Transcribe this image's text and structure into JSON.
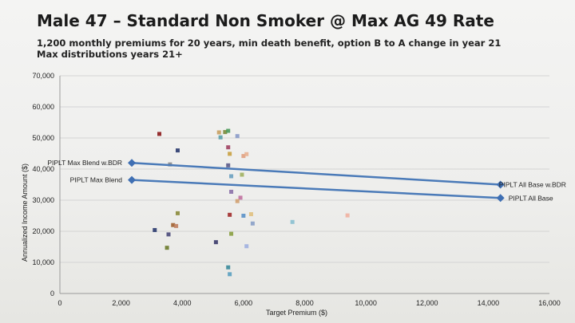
{
  "header": {
    "title": "Male 47 – Standard Non Smoker @ Max AG 49 Rate",
    "subtitle_line1": "1,200 monthly premiums for 20 years, min death benefit, option B to A change in year 21",
    "subtitle_line2": "Max distributions years 21+"
  },
  "chart_data": {
    "type": "scatter",
    "xlabel": "Target Premium ($)",
    "ylabel": "Annualized Income Amount ($)",
    "xlim": [
      0,
      16000
    ],
    "ylim": [
      0,
      70000
    ],
    "x_ticks": [
      {
        "value": 0,
        "label": "0"
      },
      {
        "value": 2000,
        "label": "2,000"
      },
      {
        "value": 4000,
        "label": "4,000"
      },
      {
        "value": 6000,
        "label": "6,000"
      },
      {
        "value": 8000,
        "label": "8,000"
      },
      {
        "value": 10000,
        "label": "10,000"
      },
      {
        "value": 12000,
        "label": "12,000"
      },
      {
        "value": 14000,
        "label": "14,000"
      },
      {
        "value": 16000,
        "label": "16,000"
      }
    ],
    "y_ticks": [
      {
        "value": 0,
        "label": "0"
      },
      {
        "value": 10000,
        "label": "10,000"
      },
      {
        "value": 20000,
        "label": "20,000"
      },
      {
        "value": 30000,
        "label": "30,000"
      },
      {
        "value": 40000,
        "label": "40,000"
      },
      {
        "value": 50000,
        "label": "50,000"
      },
      {
        "value": 60000,
        "label": "60,000"
      },
      {
        "value": 70000,
        "label": "70,000"
      }
    ],
    "gridlines": true,
    "colors": {
      "line": "#4a7ab8",
      "marker": "#3f6fb3",
      "grid": "#d4d4d4"
    },
    "series": [
      {
        "name": "PIPLT Max Blend w.BDR",
        "x": [
          2350,
          14400
        ],
        "y": [
          42000,
          35000
        ]
      },
      {
        "name": "PIPLT Max Blend",
        "x": [
          2350,
          14400
        ],
        "y": [
          36500,
          30700
        ]
      },
      {
        "name": "PIPLT All Base w.BDR",
        "x": [
          14400
        ],
        "y": [
          35000
        ]
      },
      {
        "name": "PIPLT All Base",
        "x": [
          14400
        ],
        "y": [
          30700
        ]
      }
    ],
    "scatter_points": [
      {
        "x": 3250,
        "y": 51300,
        "color": "#8b1a1a"
      },
      {
        "x": 3850,
        "y": 46000,
        "color": "#2a3a6e"
      },
      {
        "x": 3600,
        "y": 41500,
        "color": "#8a8a8a"
      },
      {
        "x": 5200,
        "y": 51800,
        "color": "#c8a060"
      },
      {
        "x": 5250,
        "y": 50200,
        "color": "#5aa0a8"
      },
      {
        "x": 5400,
        "y": 51900,
        "color": "#7a8a3a"
      },
      {
        "x": 5500,
        "y": 52300,
        "color": "#4a9a5a"
      },
      {
        "x": 5800,
        "y": 50600,
        "color": "#8a9ac8"
      },
      {
        "x": 5500,
        "y": 47000,
        "color": "#a04060"
      },
      {
        "x": 5550,
        "y": 44900,
        "color": "#c8a040"
      },
      {
        "x": 6000,
        "y": 44200,
        "color": "#e0a080"
      },
      {
        "x": 6100,
        "y": 44800,
        "color": "#e8b090"
      },
      {
        "x": 5500,
        "y": 41200,
        "color": "#5a5a8a"
      },
      {
        "x": 5600,
        "y": 37700,
        "color": "#6aa0c0"
      },
      {
        "x": 5950,
        "y": 38200,
        "color": "#a0b060"
      },
      {
        "x": 5600,
        "y": 32700,
        "color": "#8a70a8"
      },
      {
        "x": 5900,
        "y": 30800,
        "color": "#c070a0"
      },
      {
        "x": 5800,
        "y": 29700,
        "color": "#d0a070"
      },
      {
        "x": 5550,
        "y": 25300,
        "color": "#a02a2a"
      },
      {
        "x": 6000,
        "y": 25000,
        "color": "#5a90c8"
      },
      {
        "x": 6250,
        "y": 25500,
        "color": "#e0c080"
      },
      {
        "x": 6300,
        "y": 22500,
        "color": "#8aa0c8"
      },
      {
        "x": 7600,
        "y": 23000,
        "color": "#8ac0d0"
      },
      {
        "x": 9400,
        "y": 25100,
        "color": "#f0b0a0"
      },
      {
        "x": 3850,
        "y": 25800,
        "color": "#8a8a3a"
      },
      {
        "x": 3700,
        "y": 22000,
        "color": "#a06030"
      },
      {
        "x": 3800,
        "y": 21700,
        "color": "#c08060"
      },
      {
        "x": 3100,
        "y": 20400,
        "color": "#2a3a6e"
      },
      {
        "x": 3550,
        "y": 19000,
        "color": "#4a4a7a"
      },
      {
        "x": 3500,
        "y": 14700,
        "color": "#6a7a2a"
      },
      {
        "x": 5100,
        "y": 16500,
        "color": "#3a3a6a"
      },
      {
        "x": 5600,
        "y": 19200,
        "color": "#8aa040"
      },
      {
        "x": 6100,
        "y": 15200,
        "color": "#a0b0e0"
      },
      {
        "x": 5500,
        "y": 8400,
        "color": "#3a8a9a"
      },
      {
        "x": 5550,
        "y": 6200,
        "color": "#5aa0c0"
      }
    ]
  }
}
